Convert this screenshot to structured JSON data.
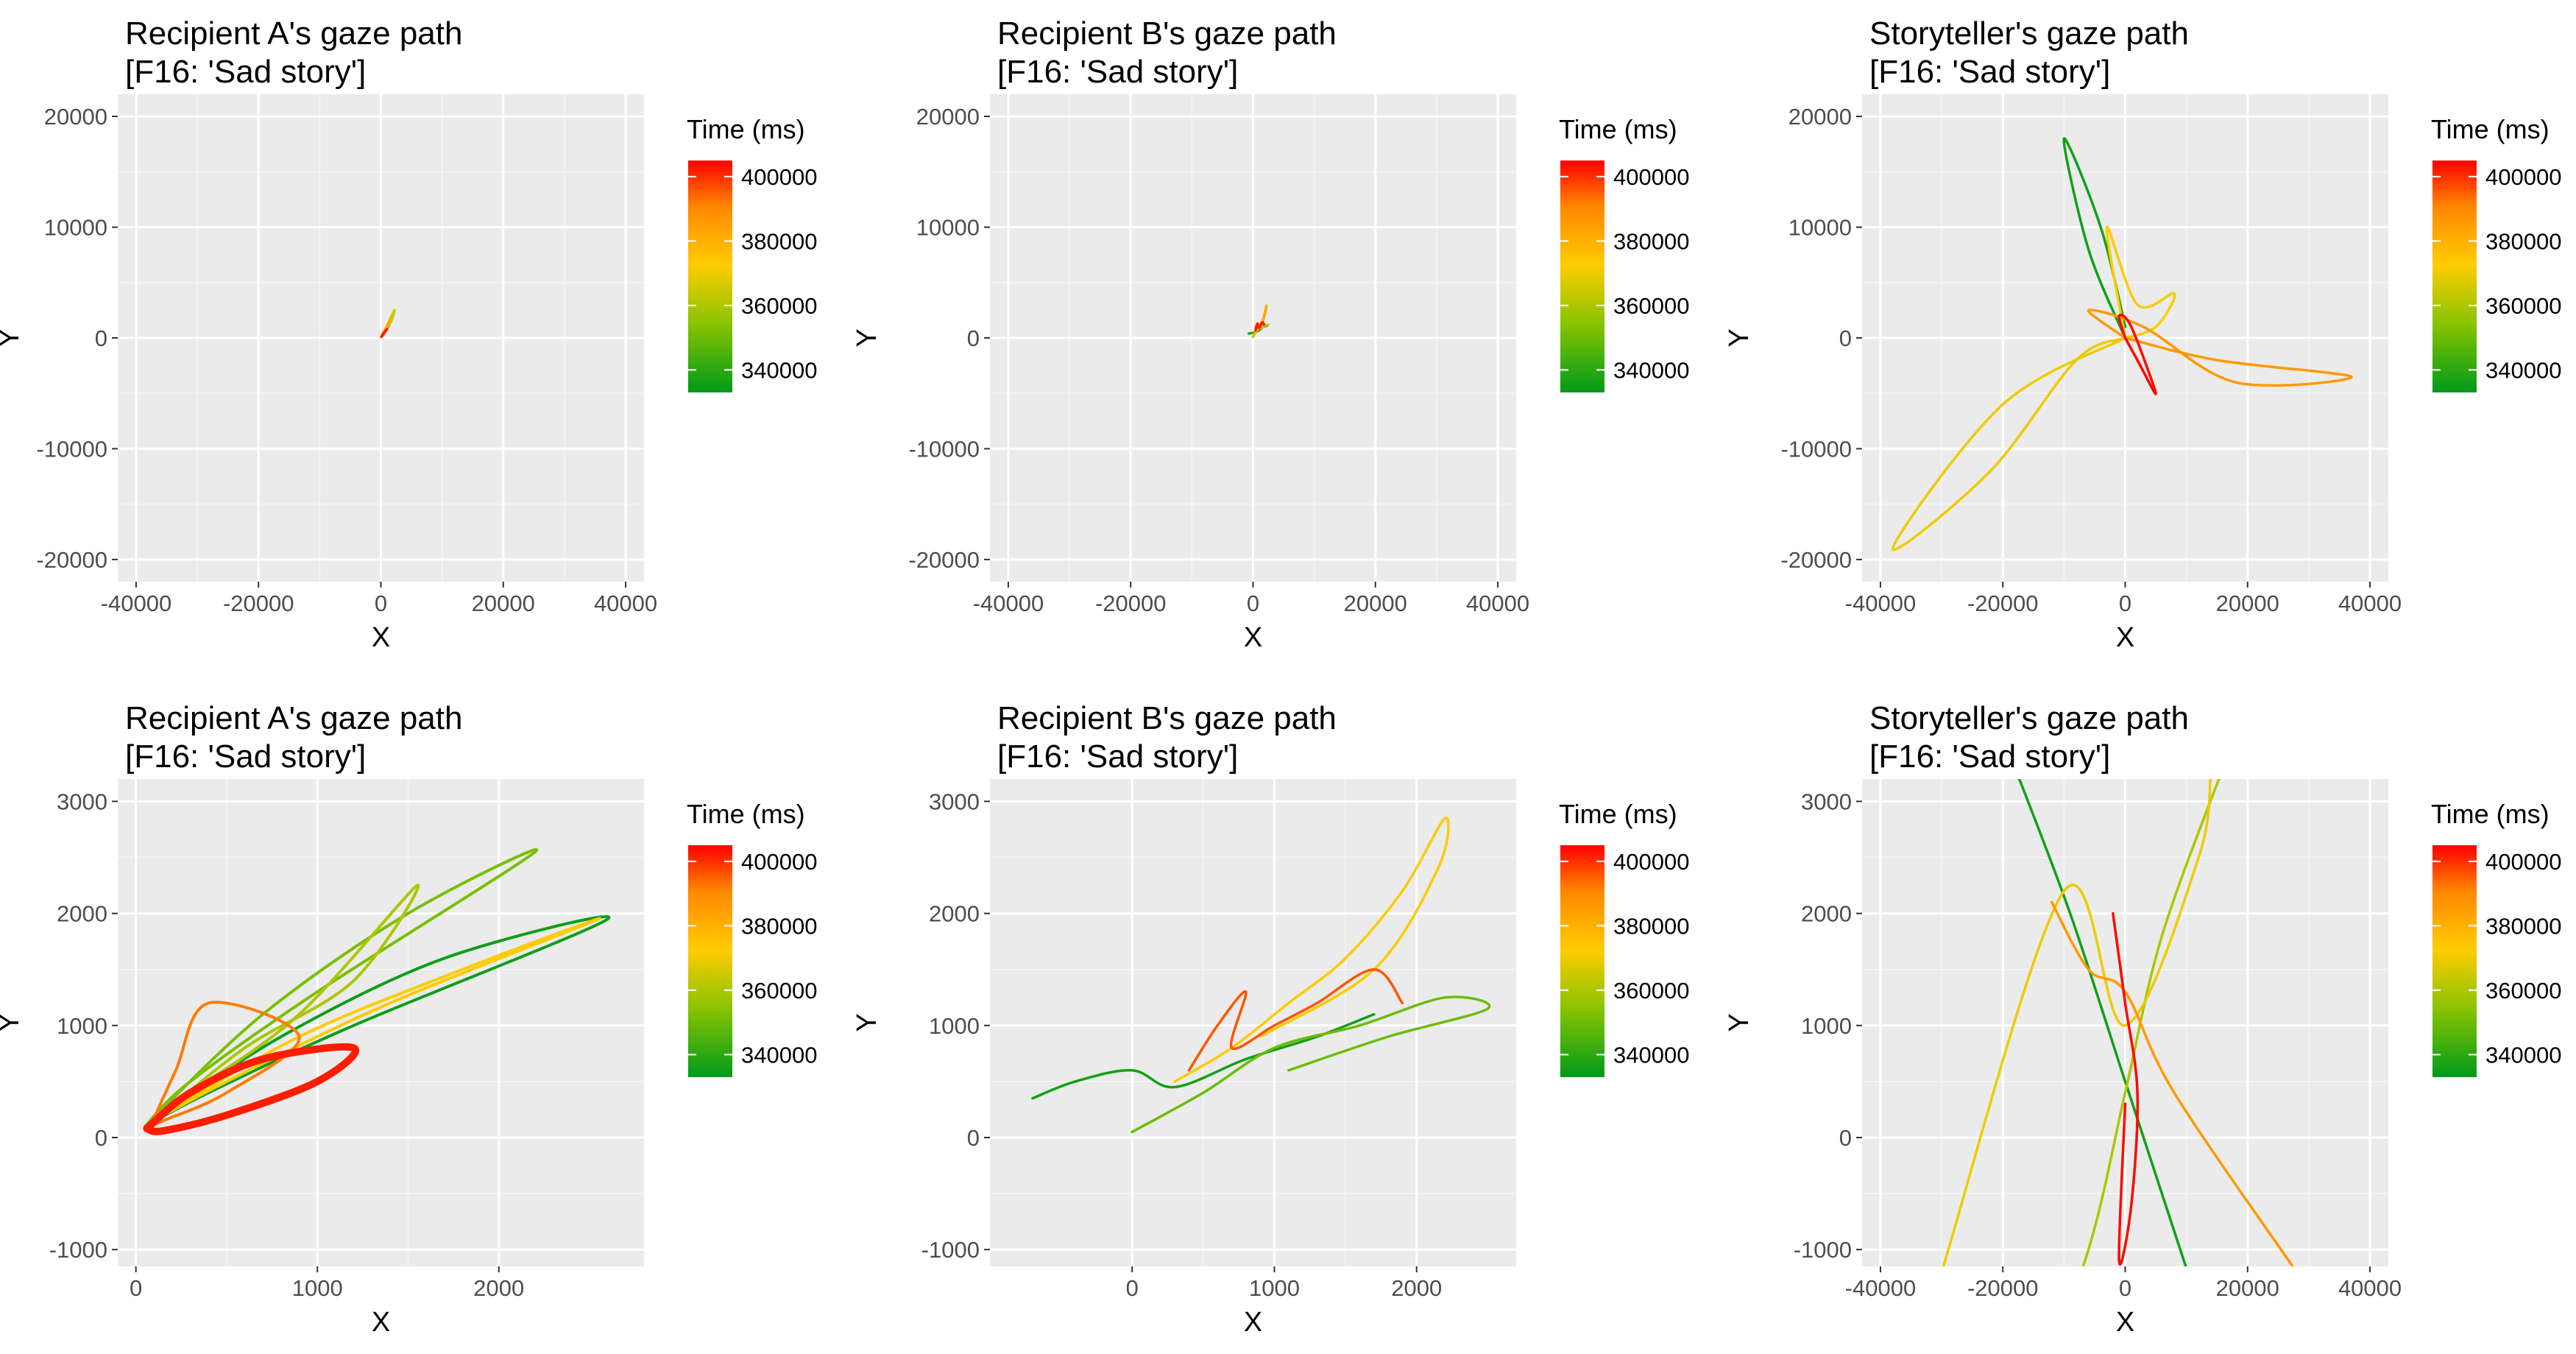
{
  "legend": {
    "title": "Time (ms)",
    "ticks": [
      "400000",
      "380000",
      "360000",
      "340000"
    ],
    "tick_values": [
      400000,
      380000,
      360000,
      340000
    ],
    "range": [
      333000,
      405000
    ],
    "colors": [
      "#009a1a",
      "#8ac400",
      "#ffcc00",
      "#ff8800",
      "#ff0000"
    ]
  },
  "chart_data": [
    {
      "id": "a-full",
      "type": "line",
      "title": [
        "Recipient A's gaze path",
        "[F16: 'Sad story']"
      ],
      "xlabel": "X",
      "ylabel": "Y",
      "xlim": [
        -43000,
        43000
      ],
      "ylim": [
        -22000,
        22000
      ],
      "xticks": [
        -40000,
        -20000,
        0,
        20000,
        40000
      ],
      "xtick_labels": [
        "-40000",
        "-20000",
        "0",
        "20000",
        "40000"
      ],
      "yticks": [
        -20000,
        -10000,
        0,
        10000,
        20000
      ],
      "ytick_labels": [
        "-20000",
        "-10000",
        "0",
        "10000",
        "20000"
      ],
      "series": [
        {
          "time": 340000,
          "x": [
            200,
            900,
            1700,
            1300,
            400
          ],
          "y": [
            300,
            900,
            1900,
            1100,
            500
          ]
        },
        {
          "time": 365000,
          "x": [
            300,
            1100,
            2200,
            1600,
            600
          ],
          "y": [
            400,
            1200,
            2500,
            1400,
            700
          ]
        },
        {
          "time": 382000,
          "x": [
            100,
            800,
            1500,
            900,
            300
          ],
          "y": [
            200,
            800,
            1500,
            900,
            300
          ]
        },
        {
          "time": 402000,
          "x": [
            100,
            500,
            1000,
            700,
            200
          ],
          "y": [
            100,
            400,
            800,
            600,
            200
          ]
        }
      ]
    },
    {
      "id": "b-full",
      "type": "line",
      "title": [
        "Recipient B's gaze path",
        "[F16: 'Sad story']"
      ],
      "xlabel": "X",
      "ylabel": "Y",
      "xlim": [
        -43000,
        43000
      ],
      "ylim": [
        -22000,
        22000
      ],
      "xticks": [
        -40000,
        -20000,
        0,
        20000,
        40000
      ],
      "xtick_labels": [
        "-40000",
        "-20000",
        "0",
        "20000",
        "40000"
      ],
      "yticks": [
        -20000,
        -10000,
        0,
        10000,
        20000
      ],
      "ytick_labels": [
        "-20000",
        "-10000",
        "0",
        "10000",
        "20000"
      ],
      "series": [
        {
          "time": 340000,
          "x": [
            -700,
            200,
            1000,
            1600,
            2300
          ],
          "y": [
            400,
            500,
            700,
            1000,
            1100
          ]
        },
        {
          "time": 365000,
          "x": [
            0,
            600,
            1200,
            1800,
            2500
          ],
          "y": [
            100,
            700,
            900,
            1100,
            1200
          ]
        },
        {
          "time": 382000,
          "x": [
            500,
            1200,
            1800,
            2200,
            1600
          ],
          "y": [
            600,
            1200,
            1900,
            2900,
            1500
          ]
        },
        {
          "time": 402000,
          "x": [
            400,
            700,
            1000,
            1500,
            1800
          ],
          "y": [
            700,
            1300,
            900,
            1400,
            1200
          ]
        }
      ]
    },
    {
      "id": "s-full",
      "type": "line",
      "title": [
        "Storyteller's gaze path",
        "[F16: 'Sad story']"
      ],
      "xlabel": "X",
      "ylabel": "Y",
      "xlim": [
        -43000,
        43000
      ],
      "ylim": [
        -22000,
        22000
      ],
      "xticks": [
        -40000,
        -20000,
        0,
        20000,
        40000
      ],
      "xtick_labels": [
        "-40000",
        "-20000",
        "0",
        "20000",
        "40000"
      ],
      "yticks": [
        -20000,
        -10000,
        0,
        10000,
        20000
      ],
      "ytick_labels": [
        "-20000",
        "-10000",
        "0",
        "10000",
        "20000"
      ],
      "series": [
        {
          "time": 336000,
          "x": [
            0,
            -6000,
            -10000,
            -4000,
            0
          ],
          "y": [
            0,
            8000,
            18000,
            10000,
            1000
          ]
        },
        {
          "time": 370000,
          "x": [
            0,
            -20000,
            -38000,
            -22000,
            -8000,
            0
          ],
          "y": [
            0,
            -6000,
            -19000,
            -12000,
            -2000,
            0
          ]
        },
        {
          "time": 372000,
          "x": [
            0,
            5000,
            8000,
            2000,
            -3000,
            0
          ],
          "y": [
            0,
            1000,
            4000,
            3000,
            10000,
            0
          ]
        },
        {
          "time": 386000,
          "x": [
            0,
            15000,
            37000,
            18000,
            3000,
            -6000,
            0
          ],
          "y": [
            0,
            -2000,
            -3500,
            -4000,
            1000,
            2500,
            0
          ]
        },
        {
          "time": 404000,
          "x": [
            0,
            2000,
            5000,
            1000,
            -1000,
            0
          ],
          "y": [
            0,
            -2000,
            -5000,
            1000,
            2000,
            0
          ]
        }
      ]
    },
    {
      "id": "a-zoom",
      "type": "line",
      "title": [
        "Recipient A's gaze path",
        "[F16: 'Sad story']"
      ],
      "xlabel": "X",
      "ylabel": "Y",
      "xlim": [
        -100,
        2800
      ],
      "ylim": [
        -1150,
        3200
      ],
      "xticks": [
        0,
        1000,
        2000
      ],
      "xtick_labels": [
        "0",
        "1000",
        "2000"
      ],
      "yticks": [
        -1000,
        0,
        1000,
        2000,
        3000
      ],
      "ytick_labels": [
        "-1000",
        "0",
        "1000",
        "2000",
        "3000"
      ],
      "series": [
        {
          "time": 335000,
          "x": [
            50,
            800,
            1700,
            2600,
            1200,
            400,
            50
          ],
          "y": [
            100,
            900,
            1600,
            1950,
            1000,
            400,
            100
          ]
        },
        {
          "time": 352000,
          "x": [
            50,
            700,
            1500,
            2200,
            1000,
            300,
            50
          ],
          "y": [
            100,
            1100,
            2000,
            2550,
            1300,
            500,
            100
          ]
        },
        {
          "time": 360000,
          "x": [
            80,
            600,
            1200,
            1550,
            900,
            300,
            80
          ],
          "y": [
            120,
            800,
            1400,
            2250,
            1100,
            400,
            120
          ]
        },
        {
          "time": 372000,
          "x": [
            100,
            900,
            1800,
            2550,
            1400,
            500,
            100
          ],
          "y": [
            150,
            900,
            1500,
            1950,
            1200,
            500,
            150
          ]
        },
        {
          "time": 392000,
          "x": [
            80,
            220,
            400,
            900,
            500,
            150,
            80
          ],
          "y": [
            100,
            600,
            1200,
            900,
            400,
            150,
            100
          ]
        },
        {
          "time": 402000,
          "x": [
            60,
            300,
            700,
            1200,
            1000,
            500,
            150,
            60
          ],
          "y": [
            80,
            400,
            700,
            800,
            500,
            200,
            60,
            80
          ]
        }
      ]
    },
    {
      "id": "b-zoom",
      "type": "line",
      "title": [
        "Recipient B's gaze path",
        "[F16: 'Sad story']"
      ],
      "xlabel": "X",
      "ylabel": "Y",
      "xlim": [
        -1000,
        2700
      ],
      "ylim": [
        -1150,
        3200
      ],
      "xticks": [
        0,
        1000,
        2000
      ],
      "xtick_labels": [
        "0",
        "1000",
        "2000"
      ],
      "yticks": [
        -1000,
        0,
        1000,
        2000,
        3000
      ],
      "ytick_labels": [
        "-1000",
        "0",
        "1000",
        "2000",
        "3000"
      ],
      "series": [
        {
          "time": 336000,
          "x": [
            -700,
            -400,
            0,
            300,
            800,
            1300,
            1700
          ],
          "y": [
            350,
            500,
            600,
            450,
            700,
            900,
            1100
          ]
        },
        {
          "time": 350000,
          "x": [
            0,
            500,
            1000,
            1600,
            2200,
            2500,
            1800,
            1100
          ],
          "y": [
            50,
            400,
            800,
            1000,
            1250,
            1150,
            900,
            600
          ]
        },
        {
          "time": 372000,
          "x": [
            300,
            700,
            1100,
            1500,
            1900,
            2200,
            2150,
            1700,
            900
          ],
          "y": [
            500,
            800,
            1200,
            1600,
            2200,
            2850,
            2400,
            1500,
            900
          ]
        },
        {
          "time": 396000,
          "x": [
            400,
            600,
            800,
            700,
            1000,
            1300,
            1700,
            1900
          ],
          "y": [
            600,
            1000,
            1300,
            800,
            1000,
            1200,
            1500,
            1200
          ]
        }
      ]
    },
    {
      "id": "s-zoom",
      "type": "line",
      "title": [
        "Storyteller's gaze path",
        "[F16: 'Sad story']"
      ],
      "xlabel": "X",
      "ylabel": "Y",
      "xlim": [
        -43000,
        43000
      ],
      "ylim": [
        -1150,
        3200
      ],
      "xticks": [
        -40000,
        -20000,
        0,
        20000,
        40000
      ],
      "xtick_labels": [
        "-40000",
        "-20000",
        "0",
        "20000",
        "40000"
      ],
      "yticks": [
        -1000,
        0,
        1000,
        2000,
        3000
      ],
      "ytick_labels": [
        "-1000",
        "0",
        "1000",
        "2000",
        "3000"
      ],
      "series": [
        {
          "time": 336000,
          "x": [
            -18000,
            -9000,
            0,
            9000,
            18000
          ],
          "y": [
            3300,
            2000,
            500,
            -1000,
            -2500
          ]
        },
        {
          "time": 360000,
          "x": [
            -16000,
            -6000,
            0,
            6000,
            16000
          ],
          "y": [
            -2500,
            -1000,
            400,
            1800,
            3300
          ]
        },
        {
          "time": 370000,
          "x": [
            -30000,
            -10000,
            0,
            12000,
            14000
          ],
          "y": [
            -1200,
            2200,
            1000,
            2500,
            3300
          ]
        },
        {
          "time": 386000,
          "x": [
            -12000,
            -6000,
            0,
            8000,
            28000
          ],
          "y": [
            2100,
            1500,
            1300,
            400,
            -1200
          ]
        },
        {
          "time": 404000,
          "x": [
            -2000,
            0,
            2000,
            1000,
            -1000,
            0
          ],
          "y": [
            2000,
            1200,
            400,
            -600,
            -1100,
            300
          ]
        }
      ]
    }
  ]
}
